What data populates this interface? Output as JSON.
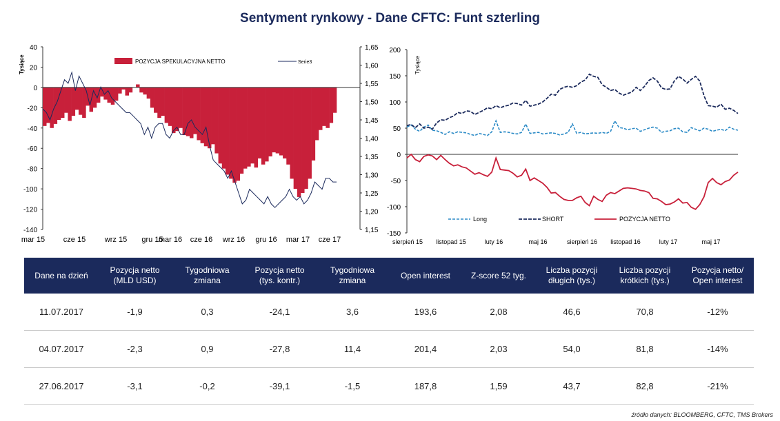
{
  "title": "Sentyment rynkowy - Dane CFTC:  Funt szterling",
  "colors": {
    "title": "#1b2a5c",
    "bar": "#c8203a",
    "serie3": "#1b2a5c",
    "long": "#2b8ac6",
    "short": "#1b2a5c",
    "net": "#c8203a",
    "table_header": "#1b2a5c"
  },
  "chart_data": [
    {
      "type": "bar",
      "ylabel": "Tysiące",
      "ylim": [
        -140,
        40
      ],
      "yticks": [
        "40",
        "20",
        "0",
        "-20",
        "-40",
        "-60",
        "-80",
        "-100",
        "-120",
        "-140"
      ],
      "y2lim": [
        1.15,
        1.65
      ],
      "y2ticks": [
        "1,65",
        "1,60",
        "1,55",
        "1,50",
        "1,45",
        "1,40",
        "1,35",
        "1,30",
        "1,25",
        "1,20",
        "1,15"
      ],
      "xticks": [
        "mar 15",
        "cze 15",
        "wrz 15",
        "gru 15",
        "mar 16",
        "cze 16",
        "wrz 16",
        "gru 16",
        "mar 17",
        "cze 17"
      ],
      "legend": {
        "bar": "POZYCJA SPEKULACYJNA NETTO",
        "line": "Serie3"
      },
      "bars": [
        -38,
        -35,
        -40,
        -36,
        -32,
        -30,
        -25,
        -33,
        -28,
        -22,
        -27,
        -30,
        -18,
        -24,
        -20,
        -15,
        -9,
        -12,
        -15,
        -17,
        -13,
        -6,
        -2,
        -8,
        -5,
        0,
        3,
        -5,
        -7,
        -11,
        -20,
        -25,
        -30,
        -28,
        -35,
        -38,
        -45,
        -43,
        -40,
        -47,
        -48,
        -50,
        -46,
        -52,
        -55,
        -58,
        -60,
        -56,
        -65,
        -75,
        -80,
        -86,
        -90,
        -94,
        -92,
        -85,
        -80,
        -78,
        -75,
        -79,
        -70,
        -76,
        -73,
        -68,
        -64,
        -65,
        -67,
        -70,
        -76,
        -90,
        -100,
        -108,
        -104,
        -100,
        -90,
        -72,
        -52,
        -42,
        -38,
        -40,
        -35,
        -25
      ],
      "serie3": [
        1.48,
        1.47,
        1.45,
        1.48,
        1.5,
        1.53,
        1.56,
        1.55,
        1.58,
        1.53,
        1.57,
        1.55,
        1.53,
        1.49,
        1.53,
        1.51,
        1.54,
        1.52,
        1.53,
        1.51,
        1.5,
        1.49,
        1.48,
        1.47,
        1.47,
        1.46,
        1.45,
        1.44,
        1.41,
        1.43,
        1.4,
        1.43,
        1.44,
        1.44,
        1.41,
        1.4,
        1.42,
        1.43,
        1.41,
        1.41,
        1.44,
        1.45,
        1.43,
        1.42,
        1.41,
        1.43,
        1.38,
        1.34,
        1.33,
        1.32,
        1.31,
        1.29,
        1.31,
        1.28,
        1.25,
        1.22,
        1.23,
        1.26,
        1.25,
        1.24,
        1.23,
        1.22,
        1.24,
        1.22,
        1.21,
        1.22,
        1.23,
        1.24,
        1.26,
        1.24,
        1.23,
        1.24,
        1.22,
        1.23,
        1.25,
        1.28,
        1.27,
        1.26,
        1.29,
        1.29,
        1.28,
        1.28
      ]
    },
    {
      "type": "line",
      "ylabel": "Tysiące",
      "ylim": [
        -150,
        200
      ],
      "yticks": [
        "200",
        "150",
        "100",
        "50",
        "0",
        "-50",
        "-100",
        "-150"
      ],
      "xticks": [
        "sierpień 15",
        "listopad 15",
        "luty 16",
        "maj 16",
        "sierpień 16",
        "listopad 16",
        "luty 17",
        "maj 17"
      ],
      "series": [
        {
          "name": "Long",
          "values": [
            52,
            56,
            48,
            44,
            52,
            56,
            46,
            45,
            42,
            38,
            43,
            40,
            43,
            42,
            41,
            38,
            36,
            40,
            38,
            36,
            43,
            64,
            42,
            43,
            42,
            40,
            39,
            42,
            58,
            40,
            41,
            42,
            39,
            40,
            41,
            40,
            37,
            39,
            42,
            58,
            40,
            42,
            39,
            40,
            41,
            40,
            42,
            40,
            44,
            64,
            51,
            50,
            47,
            49,
            50,
            44,
            47,
            50,
            52,
            50,
            42,
            44,
            45,
            49,
            50,
            43,
            42,
            51,
            48,
            45,
            50,
            48,
            44,
            46,
            48,
            45,
            52,
            48,
            46
          ]
        },
        {
          "name": "SHORT",
          "values": [
            55,
            57,
            51,
            58,
            50,
            52,
            48,
            60,
            66,
            65,
            70,
            73,
            80,
            78,
            83,
            82,
            76,
            80,
            84,
            89,
            87,
            93,
            89,
            92,
            94,
            98,
            97,
            94,
            103,
            92,
            94,
            96,
            100,
            107,
            115,
            113,
            124,
            128,
            130,
            128,
            131,
            138,
            142,
            153,
            149,
            147,
            133,
            128,
            122,
            124,
            117,
            113,
            116,
            119,
            128,
            122,
            130,
            141,
            146,
            140,
            127,
            124,
            125,
            140,
            149,
            144,
            136,
            143,
            149,
            140,
            112,
            93,
            92,
            90,
            96,
            86,
            88,
            84,
            78
          ]
        },
        {
          "name": "POZYCJA NETTO",
          "values": [
            -7,
            0,
            -10,
            -14,
            -4,
            -1,
            -3,
            -10,
            -2,
            -10,
            -17,
            -22,
            -20,
            -24,
            -26,
            -32,
            -38,
            -35,
            -39,
            -42,
            -34,
            -7,
            -29,
            -30,
            -31,
            -36,
            -43,
            -40,
            -28,
            -50,
            -45,
            -50,
            -55,
            -63,
            -74,
            -73,
            -80,
            -86,
            -88,
            -88,
            -83,
            -80,
            -92,
            -98,
            -80,
            -86,
            -90,
            -78,
            -73,
            -75,
            -70,
            -65,
            -64,
            -65,
            -66,
            -69,
            -70,
            -73,
            -84,
            -85,
            -90,
            -96,
            -95,
            -91,
            -85,
            -93,
            -92,
            -101,
            -105,
            -96,
            -81,
            -54,
            -46,
            -54,
            -58,
            -52,
            -49,
            -40,
            -34
          ]
        }
      ]
    }
  ],
  "table": {
    "headers": [
      "Dane na dzień",
      "Pozycja netto (MLD USD)",
      "Tygodniowa zmiana",
      "Pozycja netto (tys. kontr.)",
      "Tygodniowa zmiana",
      "Open interest",
      "Z-score 52 tyg.",
      "Liczba pozycji długich (tys.)",
      "Liczba pozycji krótkich (tys.)",
      "Pozycja netto/ Open interest"
    ],
    "rows": [
      [
        "11.07.2017",
        "-1,9",
        "0,3",
        "-24,1",
        "3,6",
        "193,6",
        "2,08",
        "46,6",
        "70,8",
        "-12%"
      ],
      [
        "04.07.2017",
        "-2,3",
        "0,9",
        "-27,8",
        "11,4",
        "201,4",
        "2,03",
        "54,0",
        "81,8",
        "-14%"
      ],
      [
        "27.06.2017",
        "-3,1",
        "-0,2",
        "-39,1",
        "-1,5",
        "187,8",
        "1,59",
        "43,7",
        "82,8",
        "-21%"
      ]
    ]
  },
  "source": "źródło danych: BLOOMBERG, CFTC, TMS Brokers"
}
